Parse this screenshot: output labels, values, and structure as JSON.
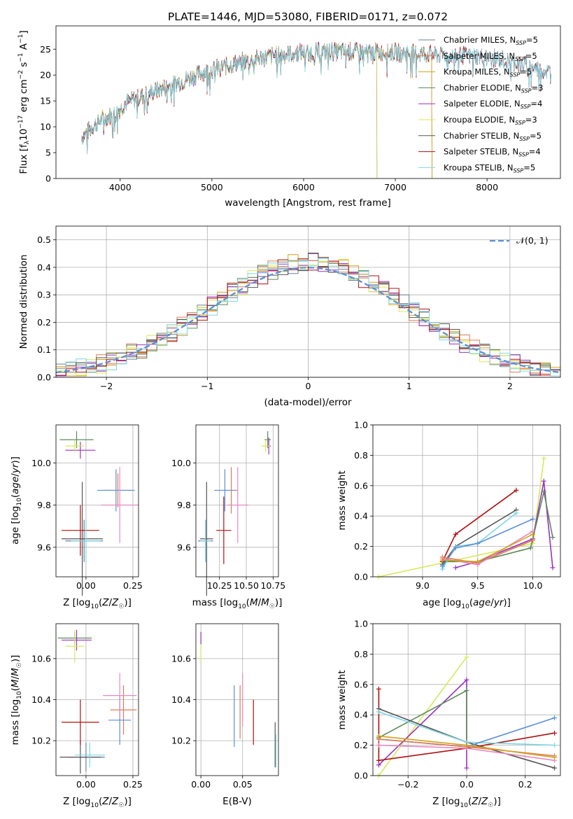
{
  "figure_title": "PLATE=1446, MJD=53080, FIBERID=0171, z=0.072",
  "colors": {
    "Chabrier MILES": "#6a7f9a",
    "Salpeter MILES": "#e07b54",
    "Kroupa MILES": "#d4a21a",
    "Chabrier ELODIE": "#5b8a5b",
    "Salpeter ELODIE": "#9b30c0",
    "Kroupa ELODIE": "#d8e85a",
    "Chabrier STELIB": "#555555",
    "Salpeter STELIB": "#b01010",
    "Kroupa STELIB": "#7fd6e6",
    "blue_model": "#5b8fd9",
    "pink_model": "#e889c0",
    "normal_curve": "#5b8fd9"
  },
  "chart_data": [
    {
      "type": "line",
      "name": "spectrum",
      "xlabel": "wavelength [Angstrom, rest frame]",
      "ylabel": "Flux [f_λ10⁻¹⁷ erg cm⁻² s⁻¹ A⁻¹]",
      "xlim": [
        3300,
        8800
      ],
      "ylim": [
        0,
        29.5
      ],
      "xticks": [
        4000,
        5000,
        6000,
        7000,
        8000
      ],
      "yticks": [
        0,
        5,
        10,
        15,
        20,
        25
      ],
      "xtick_labels": [
        "4000",
        "5000",
        "6000",
        "7000",
        "8000"
      ],
      "ytick_labels": [
        "0",
        "5",
        "10",
        "15",
        "20",
        "25"
      ],
      "grid": false,
      "legend_position": "top-right",
      "continuum": [
        [
          3580,
          8
        ],
        [
          3700,
          10
        ],
        [
          3800,
          11.5
        ],
        [
          3950,
          12.5
        ],
        [
          4050,
          14.5
        ],
        [
          4250,
          16
        ],
        [
          4400,
          17
        ],
        [
          4700,
          19
        ],
        [
          4900,
          20.5
        ],
        [
          5100,
          21.5
        ],
        [
          5300,
          22.5
        ],
        [
          5600,
          23.5
        ],
        [
          5900,
          24.3
        ],
        [
          6200,
          24.5
        ],
        [
          6500,
          24.5
        ],
        [
          6800,
          24.4
        ],
        [
          7100,
          24.3
        ],
        [
          7400,
          24
        ],
        [
          7700,
          23.8
        ],
        [
          8000,
          23.5
        ],
        [
          8300,
          22.5
        ],
        [
          8500,
          21.5
        ],
        [
          8700,
          20.5
        ]
      ],
      "series": [
        {
          "name": "Chabrier MILES, N_SSP=5",
          "legend": "Chabrier MILES, N",
          "sub": "SSP",
          "suffix": "=5",
          "end": 7400
        },
        {
          "name": "Salpeter MILES, N_SSP=5",
          "legend": "Salpeter MILES, N",
          "sub": "SSP",
          "suffix": "=5",
          "end": 7400
        },
        {
          "name": "Kroupa MILES, N_SSP=5",
          "legend": "Kroupa MILES, N",
          "sub": "SSP",
          "suffix": "=5",
          "end": 7400
        },
        {
          "name": "Chabrier ELODIE, N_SSP=3",
          "legend": "Chabrier ELODIE, N",
          "sub": "SSP",
          "suffix": "=3",
          "end": 6800
        },
        {
          "name": "Salpeter ELODIE, N_SSP=4",
          "legend": "Salpeter ELODIE, N",
          "sub": "SSP",
          "suffix": "=4",
          "end": 6800
        },
        {
          "name": "Kroupa ELODIE, N_SSP=3",
          "legend": "Kroupa ELODIE, N",
          "sub": "SSP",
          "suffix": "=3",
          "end": 6800
        },
        {
          "name": "Chabrier STELIB, N_SSP=5",
          "legend": "Chabrier STELIB, N",
          "sub": "SSP",
          "suffix": "=5",
          "end": 8700
        },
        {
          "name": "Salpeter STELIB, N_SSP=4",
          "legend": "Salpeter STELIB, N",
          "sub": "SSP",
          "suffix": "=4",
          "end": 8700
        },
        {
          "name": "Kroupa STELIB, N_SSP=5",
          "legend": "Kroupa STELIB, N",
          "sub": "SSP",
          "suffix": "=5",
          "end": 8700
        }
      ]
    },
    {
      "type": "histogram",
      "name": "residuals",
      "xlabel": "(data-model)/error",
      "ylabel": "Normed distribution",
      "xlim": [
        -2.5,
        2.5
      ],
      "ylim": [
        0,
        0.55
      ],
      "xticks": [
        -2,
        -1,
        0,
        1,
        2
      ],
      "xtick_labels": [
        "−2",
        "−1",
        "0",
        "1",
        "2"
      ],
      "yticks": [
        0,
        0.1,
        0.2,
        0.3,
        0.4,
        0.5
      ],
      "ytick_labels": [
        "0.0",
        "0.1",
        "0.2",
        "0.3",
        "0.4",
        "0.5"
      ],
      "grid": true,
      "legend_position": "top-right",
      "legend_label": "𝒩(0, 1)",
      "bin_width": 0.1,
      "bin_start": -2.5,
      "curve": "standard normal"
    },
    {
      "type": "scatter",
      "name": "age-vs-metallicity",
      "xlabel": "Z [log₁₀(Z/Z☉)]",
      "ylabel": "age  [log₁₀(age/yr)]",
      "xlim": [
        -0.16,
        0.28
      ],
      "ylim": [
        9.46,
        10.18
      ],
      "xticks": [
        0,
        0.25
      ],
      "xtick_labels": [
        "0.00",
        "0.25"
      ],
      "yticks": [
        9.6,
        9.8,
        10.0
      ],
      "ytick_labels": [
        "9.6",
        "9.8",
        "10.0"
      ],
      "grid": true,
      "points": [
        {
          "c": "Chabrier MILES",
          "x": -0.01,
          "y": 9.63,
          "xe": 0.1,
          "ye": 0.1
        },
        {
          "c": "Salpeter MILES",
          "x": 0.17,
          "y": 9.87,
          "xe": 0.08,
          "ye": 0.08
        },
        {
          "c": "Chabrier ELODIE",
          "x": -0.05,
          "y": 10.11,
          "xe": 0.09,
          "ye": 0.04
        },
        {
          "c": "Salpeter ELODIE",
          "x": -0.03,
          "y": 10.06,
          "xe": 0.08,
          "ye": 0.04
        },
        {
          "c": "Kroupa ELODIE",
          "x": -0.06,
          "y": 10.08,
          "xe": 0.05,
          "ye": 0.03
        },
        {
          "c": "Chabrier STELIB",
          "x": -0.02,
          "y": 9.64,
          "xe": 0.11,
          "ye": 0.27
        },
        {
          "c": "Salpeter STELIB",
          "x": -0.03,
          "y": 9.68,
          "xe": 0.1,
          "ye": 0.12
        },
        {
          "c": "Kroupa STELIB",
          "x": 0.0,
          "y": 9.63,
          "xe": 0.08,
          "ye": 0.1
        },
        {
          "c": "blue_model",
          "x": 0.16,
          "y": 9.87,
          "xe": 0.1,
          "ye": 0.1
        },
        {
          "c": "pink_model",
          "x": 0.18,
          "y": 9.8,
          "xe": 0.1,
          "ye": 0.18
        }
      ]
    },
    {
      "type": "scatter",
      "name": "age-vs-mass",
      "xlabel": "mass [log₁₀(M/M☉)]",
      "ylabel": "",
      "xlim": [
        10.03,
        10.8
      ],
      "ylim": [
        9.46,
        10.18
      ],
      "xticks": [
        10.25,
        10.5,
        10.75
      ],
      "xtick_labels": [
        "10.25",
        "10.50",
        "10.75"
      ],
      "yticks": [
        9.6,
        9.8,
        10.0
      ],
      "ytick_labels": [
        "9.6",
        "9.8",
        "10.0"
      ],
      "grid": true,
      "points": [
        {
          "c": "Chabrier MILES",
          "x": 10.12,
          "y": 9.63,
          "xe": 0.07,
          "ye": 0.1
        },
        {
          "c": "Salpeter MILES",
          "x": 10.36,
          "y": 9.87,
          "xe": 0.06,
          "ye": 0.11
        },
        {
          "c": "Chabrier ELODIE",
          "x": 10.7,
          "y": 10.11,
          "xe": 0.03,
          "ye": 0.04
        },
        {
          "c": "Salpeter ELODIE",
          "x": 10.71,
          "y": 10.08,
          "xe": 0.02,
          "ye": 0.04
        },
        {
          "c": "Kroupa ELODIE",
          "x": 10.68,
          "y": 10.08,
          "xe": 0.04,
          "ye": 0.03
        },
        {
          "c": "Chabrier STELIB",
          "x": 10.13,
          "y": 9.64,
          "xe": 0.06,
          "ye": 0.27
        },
        {
          "c": "Salpeter STELIB",
          "x": 10.29,
          "y": 9.68,
          "xe": 0.07,
          "ye": 0.16
        },
        {
          "c": "Kroupa STELIB",
          "x": 10.12,
          "y": 9.63,
          "xe": 0.05,
          "ye": 0.1
        },
        {
          "c": "blue_model",
          "x": 10.3,
          "y": 9.87,
          "xe": 0.1,
          "ye": 0.1
        },
        {
          "c": "pink_model",
          "x": 10.42,
          "y": 9.8,
          "xe": 0.1,
          "ye": 0.18
        }
      ]
    },
    {
      "type": "line",
      "name": "mass-weight-vs-age",
      "xlabel": "age  [log₁₀(age/yr)]",
      "ylabel": "mass weight",
      "xlim": [
        8.55,
        10.25
      ],
      "ylim": [
        0,
        1
      ],
      "xticks": [
        9.0,
        9.5,
        10.0
      ],
      "xtick_labels": [
        "9.0",
        "9.5",
        "10.0"
      ],
      "yticks": [
        0,
        0.2,
        0.4,
        0.6,
        0.8,
        1.0
      ],
      "ytick_labels": [
        "0.0",
        "0.2",
        "0.4",
        "0.6",
        "0.8",
        "1.0"
      ],
      "grid": true,
      "series": [
        {
          "c": "Kroupa ELODIE",
          "x": [
            8.6,
            10.0,
            10.1
          ],
          "y": [
            0.0,
            0.22,
            0.78
          ]
        },
        {
          "c": "Salpeter ELODIE",
          "x": [
            9.3,
            9.5,
            10.0,
            10.1,
            10.18
          ],
          "y": [
            0.06,
            0.1,
            0.25,
            0.63,
            0.06
          ]
        },
        {
          "c": "Chabrier ELODIE",
          "x": [
            9.18,
            9.5,
            9.98,
            10.1,
            10.18
          ],
          "y": [
            0.1,
            0.1,
            0.19,
            0.56,
            0.26
          ]
        },
        {
          "c": "Salpeter STELIB",
          "x": [
            9.18,
            9.3,
            9.85
          ],
          "y": [
            0.1,
            0.28,
            0.57
          ]
        },
        {
          "c": "Chabrier STELIB",
          "x": [
            9.18,
            9.3,
            9.85
          ],
          "y": [
            0.08,
            0.2,
            0.44
          ]
        },
        {
          "c": "Kroupa STELIB",
          "x": [
            9.18,
            9.3,
            9.5,
            9.85
          ],
          "y": [
            0.05,
            0.2,
            0.22,
            0.42
          ]
        },
        {
          "c": "blue_model",
          "x": [
            9.18,
            9.3,
            9.5,
            10.0
          ],
          "y": [
            0.07,
            0.19,
            0.22,
            0.38
          ]
        },
        {
          "c": "Salpeter MILES",
          "x": [
            9.18,
            9.5,
            10.0
          ],
          "y": [
            0.13,
            0.09,
            0.24
          ]
        },
        {
          "c": "pink_model",
          "x": [
            9.18,
            9.5,
            10.0
          ],
          "y": [
            0.12,
            0.08,
            0.3
          ]
        },
        {
          "c": "Kroupa MILES",
          "x": [
            9.18,
            9.5,
            10.0
          ],
          "y": [
            0.11,
            0.1,
            0.28
          ]
        }
      ]
    },
    {
      "type": "scatter",
      "name": "mass-vs-metallicity",
      "xlabel": "Z [log₁₀(Z/Z☉)]",
      "ylabel": "mass [log₁₀(M/M☉)]",
      "xlim": [
        -0.16,
        0.28
      ],
      "ylim": [
        10.03,
        10.77
      ],
      "xticks": [
        0,
        0.25
      ],
      "xtick_labels": [
        "0.00",
        "0.25"
      ],
      "yticks": [
        10.2,
        10.4,
        10.6
      ],
      "ytick_labels": [
        "10.2",
        "10.4",
        "10.6"
      ],
      "grid": true,
      "points": [
        {
          "c": "Chabrier MILES",
          "x": 0.0,
          "y": 10.12,
          "xe": 0.1,
          "ye": 0.07
        },
        {
          "c": "Salpeter MILES",
          "x": 0.2,
          "y": 10.35,
          "xe": 0.07,
          "ye": 0.12
        },
        {
          "c": "Chabrier ELODIE",
          "x": -0.06,
          "y": 10.7,
          "xe": 0.09,
          "ye": 0.03
        },
        {
          "c": "Salpeter ELODIE",
          "x": -0.05,
          "y": 10.69,
          "xe": 0.08,
          "ye": 0.05
        },
        {
          "c": "Kroupa ELODIE",
          "x": -0.06,
          "y": 10.66,
          "xe": 0.05,
          "ye": 0.08
        },
        {
          "c": "Chabrier STELIB",
          "x": -0.03,
          "y": 10.12,
          "xe": 0.11,
          "ye": 0.08
        },
        {
          "c": "Salpeter STELIB",
          "x": -0.03,
          "y": 10.29,
          "xe": 0.1,
          "ye": 0.11
        },
        {
          "c": "Kroupa STELIB",
          "x": 0.02,
          "y": 10.13,
          "xe": 0.08,
          "ye": 0.06
        },
        {
          "c": "blue_model",
          "x": 0.18,
          "y": 10.3,
          "xe": 0.06,
          "ye": 0.12
        },
        {
          "c": "pink_model",
          "x": 0.18,
          "y": 10.42,
          "xe": 0.09,
          "ye": 0.11
        }
      ]
    },
    {
      "type": "scatter",
      "name": "mass-vs-reddening",
      "xlabel": "E(B-V)",
      "ylabel": "",
      "xlim": [
        -0.006,
        0.093
      ],
      "ylim": [
        10.03,
        10.77
      ],
      "xticks": [
        0.0,
        0.05
      ],
      "xtick_labels": [
        "0.00",
        "0.05"
      ],
      "yticks": [
        10.2,
        10.4,
        10.6
      ],
      "ytick_labels": [
        "10.2",
        "10.4",
        "10.6"
      ],
      "grid": true,
      "points": [
        {
          "c": "blue_model",
          "x": 0.04,
          "y": 10.32,
          "xe": 0,
          "ye": 0.15
        },
        {
          "c": "Salpeter MILES",
          "x": 0.047,
          "y": 10.34,
          "xe": 0,
          "ye": 0.13
        },
        {
          "c": "pink_model",
          "x": 0.05,
          "y": 10.4,
          "xe": 0,
          "ye": 0.13
        },
        {
          "c": "Salpeter STELIB",
          "x": 0.063,
          "y": 10.29,
          "xe": 0,
          "ye": 0.11
        },
        {
          "c": "Chabrier STELIB",
          "x": 0.089,
          "y": 10.18,
          "xe": 0,
          "ye": 0.11
        },
        {
          "c": "Kroupa STELIB",
          "x": 0.09,
          "y": 10.15,
          "xe": 0,
          "ye": 0.08
        },
        {
          "c": "Kroupa ELODIE",
          "x": 0.0,
          "y": 10.66,
          "xe": 0,
          "ye": 0.07
        },
        {
          "c": "Salpeter ELODIE",
          "x": 0.0,
          "y": 10.7,
          "xe": 0,
          "ye": 0.03
        }
      ]
    },
    {
      "type": "line",
      "name": "mass-weight-vs-metallicity",
      "xlabel": "Z [log₁₀(Z/Z☉)]",
      "ylabel": "mass weight",
      "xlim": [
        -0.32,
        0.32
      ],
      "ylim": [
        0,
        1
      ],
      "xticks": [
        -0.2,
        0.0,
        0.2
      ],
      "xtick_labels": [
        "−0.2",
        "0.0",
        "0.2"
      ],
      "yticks": [
        0,
        0.2,
        0.4,
        0.6,
        0.8,
        1.0
      ],
      "ytick_labels": [
        "0.0",
        "0.2",
        "0.4",
        "0.6",
        "0.8",
        "1.0"
      ],
      "grid": true,
      "series": [
        {
          "c": "Kroupa ELODIE",
          "x": [
            -0.3,
            0.0
          ],
          "y": [
            0.0,
            0.78
          ]
        },
        {
          "c": "Salpeter ELODIE",
          "x": [
            -0.3,
            0.0,
            0.0
          ],
          "y": [
            0.07,
            0.63,
            0.05
          ]
        },
        {
          "c": "Chabrier ELODIE",
          "x": [
            -0.3,
            0.0,
            0.0
          ],
          "y": [
            0.25,
            0.56,
            0.18
          ]
        },
        {
          "c": "Salpeter STELIB",
          "x": [
            -0.3,
            -0.3,
            0.0,
            0.3
          ],
          "y": [
            0.57,
            0.1,
            0.18,
            0.28
          ]
        },
        {
          "c": "Chabrier STELIB",
          "x": [
            -0.3,
            0.0,
            0.3
          ],
          "y": [
            0.44,
            0.22,
            0.05
          ]
        },
        {
          "c": "Kroupa STELIB",
          "x": [
            -0.3,
            0.0,
            0.3
          ],
          "y": [
            0.42,
            0.22,
            0.2
          ]
        },
        {
          "c": "blue_model",
          "x": [
            -0.3,
            0.0,
            0.3
          ],
          "y": [
            0.24,
            0.19,
            0.38
          ]
        },
        {
          "c": "Salpeter MILES",
          "x": [
            -0.3,
            0.0,
            0.3
          ],
          "y": [
            0.24,
            0.19,
            0.13
          ]
        },
        {
          "c": "pink_model",
          "x": [
            -0.3,
            0.0,
            0.3
          ],
          "y": [
            0.2,
            0.18,
            0.1
          ]
        },
        {
          "c": "Kroupa MILES",
          "x": [
            -0.3,
            0.0,
            0.3
          ],
          "y": [
            0.26,
            0.2,
            0.12
          ]
        }
      ]
    }
  ]
}
